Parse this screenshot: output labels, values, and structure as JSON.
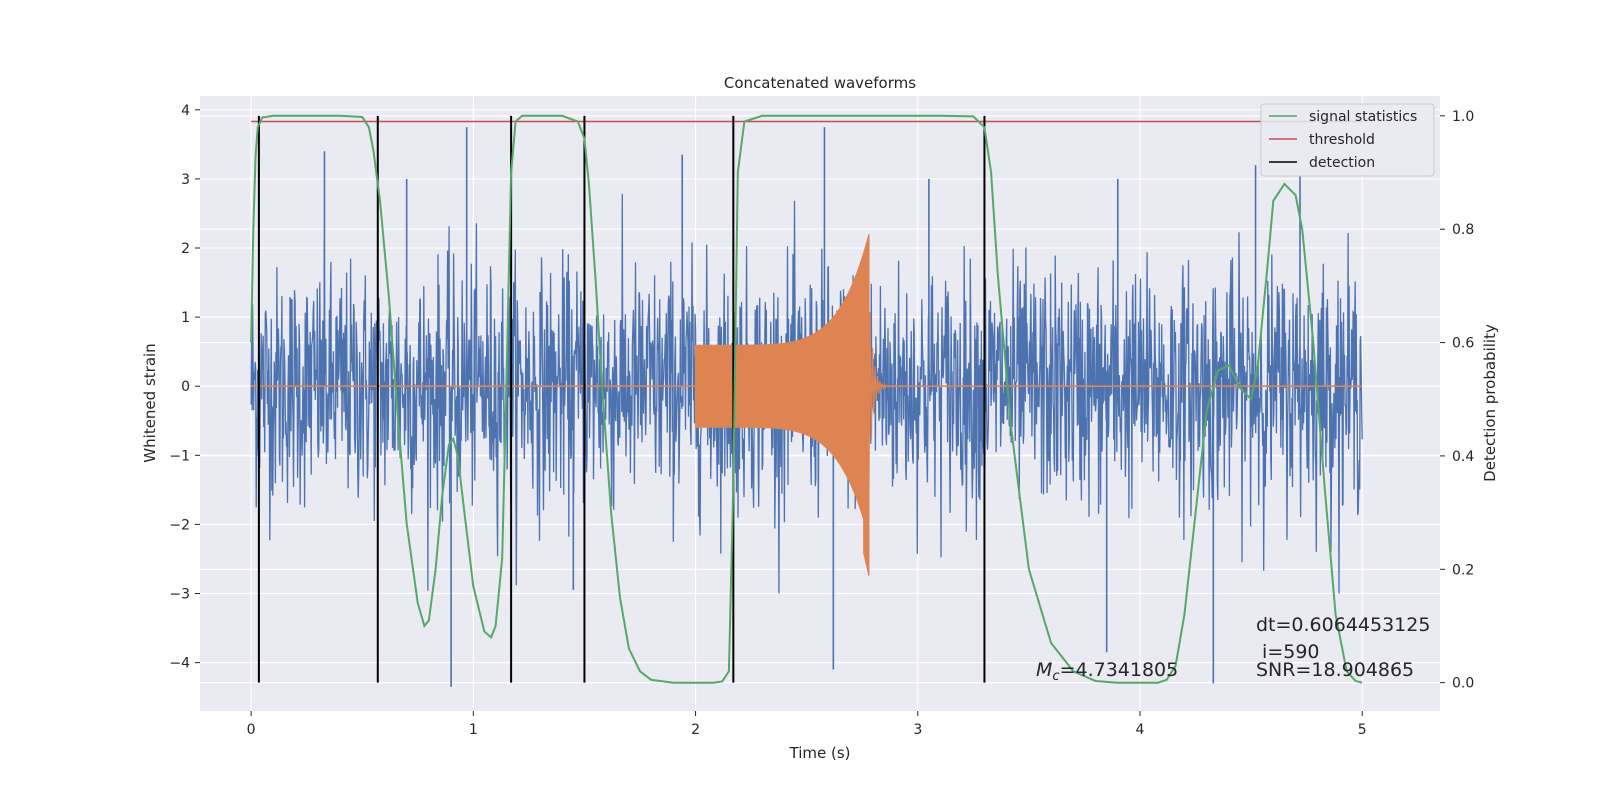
{
  "chart_data": {
    "type": "line",
    "title": "Concatenated waveforms",
    "xlabel": "Time (s)",
    "ylabel": "Whitened strain",
    "ylabel_right": "Detection probability",
    "xlim": [
      -0.23,
      5.35
    ],
    "ylim": [
      -4.7,
      4.2
    ],
    "ylim_right": [
      -0.05,
      1.035
    ],
    "xticks": [
      0,
      1,
      2,
      3,
      4,
      5
    ],
    "yticks": [
      -4,
      -3,
      -2,
      -1,
      0,
      1,
      2,
      3,
      4
    ],
    "yticks_right": [
      0.0,
      0.2,
      0.4,
      0.6,
      0.8,
      1.0
    ],
    "xtick_labels": [
      "0",
      "1",
      "2",
      "3",
      "4",
      "5"
    ],
    "ytick_labels": [
      "−4",
      "−3",
      "−2",
      "−1",
      "0",
      "1",
      "2",
      "3",
      "4"
    ],
    "ytick_right_labels": [
      "0.0",
      "0.2",
      "0.4",
      "0.6",
      "0.8",
      "1.0"
    ],
    "grid": true,
    "legend_position": "top-right",
    "colors": {
      "background": "#eaeaf2",
      "strain": "#4c72b0",
      "waveform": "#dd8452",
      "signal_statistics": "#55a868",
      "threshold": "#c44e52",
      "detection": "#000000"
    },
    "series": [
      {
        "name": "strain",
        "axis": "left",
        "x_range": [
          0,
          5
        ],
        "amplitude_std": 0.85,
        "spikes": [
          [
            0.33,
            3.4
          ],
          [
            0.9,
            -4.35
          ],
          [
            0.97,
            3.75
          ],
          [
            1.94,
            3.35
          ],
          [
            2.58,
            3.75
          ],
          [
            3.85,
            -3.85
          ],
          [
            4.33,
            -4.3
          ],
          [
            4.52,
            3.2
          ],
          [
            4.72,
            3.05
          ],
          [
            2.62,
            -4.1
          ],
          [
            0.7,
            3.0
          ],
          [
            1.45,
            -2.95
          ],
          [
            3.05,
            3.0
          ],
          [
            3.9,
            3.0
          ]
        ]
      },
      {
        "name": "waveform",
        "axis": "left",
        "x_range": [
          0,
          5
        ],
        "chirp_start": 2.0,
        "chirp_end": 2.78,
        "ringdown_end": 3.0,
        "start_amplitude": 0.6,
        "peak_max": 2.2,
        "peak_min": -2.75
      },
      {
        "name": "signal statistics",
        "axis": "right",
        "x": [
          0,
          0.01,
          0.02,
          0.03,
          0.05,
          0.1,
          0.2,
          0.3,
          0.4,
          0.5,
          0.53,
          0.55,
          0.58,
          0.62,
          0.66,
          0.7,
          0.75,
          0.78,
          0.8,
          0.83,
          0.86,
          0.89,
          0.91,
          0.93,
          0.96,
          1.0,
          1.05,
          1.08,
          1.1,
          1.13,
          1.15,
          1.17,
          1.19,
          1.22,
          1.3,
          1.4,
          1.47,
          1.5,
          1.52,
          1.55,
          1.58,
          1.62,
          1.66,
          1.7,
          1.75,
          1.8,
          1.9,
          2.0,
          2.08,
          2.12,
          2.15,
          2.17,
          2.19,
          2.22,
          2.3,
          2.5,
          2.8,
          3.1,
          3.25,
          3.3,
          3.33,
          3.36,
          3.42,
          3.5,
          3.6,
          3.7,
          3.8,
          3.9,
          4.0,
          4.08,
          4.12,
          4.16,
          4.2,
          4.25,
          4.3,
          4.35,
          4.4,
          4.45,
          4.5,
          4.53,
          4.57,
          4.6,
          4.65,
          4.7,
          4.73,
          4.78,
          4.83,
          4.88,
          4.93,
          4.97,
          5.0
        ],
        "values": [
          0.6,
          0.8,
          0.93,
          0.98,
          0.997,
          1.0,
          1.0,
          1.0,
          1.0,
          0.998,
          0.98,
          0.94,
          0.85,
          0.68,
          0.47,
          0.28,
          0.14,
          0.1,
          0.11,
          0.2,
          0.33,
          0.42,
          0.43,
          0.4,
          0.3,
          0.17,
          0.09,
          0.08,
          0.1,
          0.22,
          0.55,
          0.9,
          0.99,
          1.0,
          1.0,
          1.0,
          0.99,
          0.96,
          0.88,
          0.71,
          0.52,
          0.3,
          0.15,
          0.06,
          0.02,
          0.005,
          0.0,
          0.0,
          0.0,
          0.002,
          0.02,
          0.35,
          0.9,
          0.99,
          1.0,
          1.0,
          1.0,
          1.0,
          0.999,
          0.98,
          0.9,
          0.72,
          0.45,
          0.2,
          0.07,
          0.02,
          0.003,
          0.0,
          0.0,
          0.0,
          0.005,
          0.03,
          0.12,
          0.3,
          0.48,
          0.55,
          0.56,
          0.52,
          0.5,
          0.56,
          0.72,
          0.85,
          0.88,
          0.86,
          0.8,
          0.6,
          0.35,
          0.12,
          0.02,
          0.003,
          0.0
        ]
      },
      {
        "name": "threshold",
        "axis": "right",
        "x": [
          0,
          5
        ],
        "values": [
          0.99,
          0.99
        ]
      },
      {
        "name": "detection",
        "axis": "right",
        "x": [
          0.035,
          0.57,
          1.17,
          1.5,
          2.17,
          3.3
        ],
        "range": [
          0.0,
          1.0
        ]
      }
    ],
    "legend": [
      {
        "label": "signal statistics",
        "color": "#55a868"
      },
      {
        "label": "threshold",
        "color": "#c44e52"
      },
      {
        "label": "detection",
        "color": "#000000"
      }
    ],
    "annotations": {
      "dt": "dt=0.6064453125",
      "i": " i=590",
      "mc_symbol": "M",
      "mc_sub": "c",
      "mc_value": "=4.7341805",
      "snr": "SNR=18.904865"
    }
  }
}
